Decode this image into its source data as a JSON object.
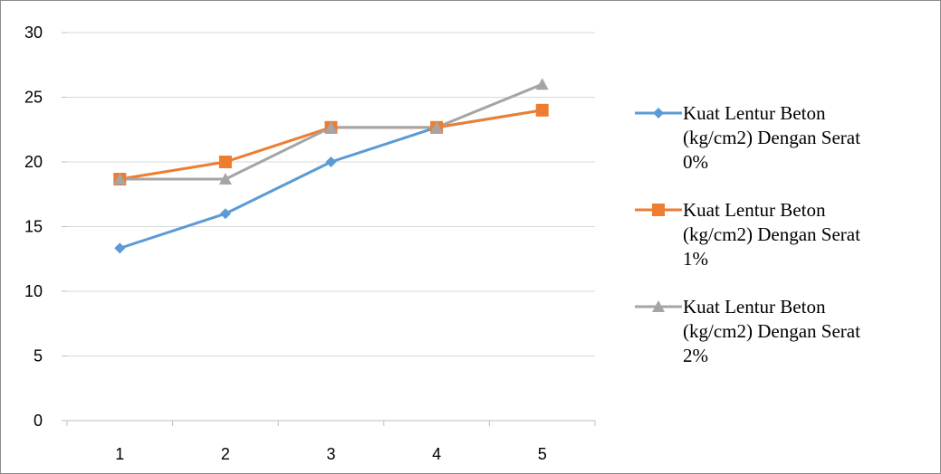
{
  "chart_data": {
    "type": "line",
    "title": "",
    "xlabel": "",
    "ylabel": "",
    "categories": [
      "1",
      "2",
      "3",
      "4",
      "5"
    ],
    "ylim": [
      0,
      30
    ],
    "yticks": [
      "0",
      "5",
      "10",
      "15",
      "20",
      "25",
      "30"
    ],
    "grid": "horizontal",
    "legend_position": "right",
    "series": [
      {
        "name": "Kuat Lentur Beton (kg/cm2) Dengan Serat 0%",
        "legend_lines": [
          "Kuat Lentur Beton",
          "(kg/cm2) Dengan Serat",
          "0%"
        ],
        "values": [
          13.33,
          16.0,
          20.0,
          22.67,
          24.0
        ],
        "color": "#5B9BD5",
        "marker": "diamond"
      },
      {
        "name": "Kuat Lentur Beton (kg/cm2) Dengan Serat 1%",
        "legend_lines": [
          "Kuat Lentur Beton",
          "(kg/cm2) Dengan Serat",
          "1%"
        ],
        "values": [
          18.67,
          20.0,
          22.67,
          22.67,
          24.0
        ],
        "color": "#ED7D31",
        "marker": "square"
      },
      {
        "name": "Kuat Lentur Beton (kg/cm2) Dengan Serat 2%",
        "legend_lines": [
          "Kuat Lentur Beton",
          "(kg/cm2) Dengan Serat",
          "2%"
        ],
        "values": [
          18.67,
          18.67,
          22.67,
          22.67,
          26.0
        ],
        "color": "#A5A5A5",
        "marker": "triangle"
      }
    ]
  }
}
